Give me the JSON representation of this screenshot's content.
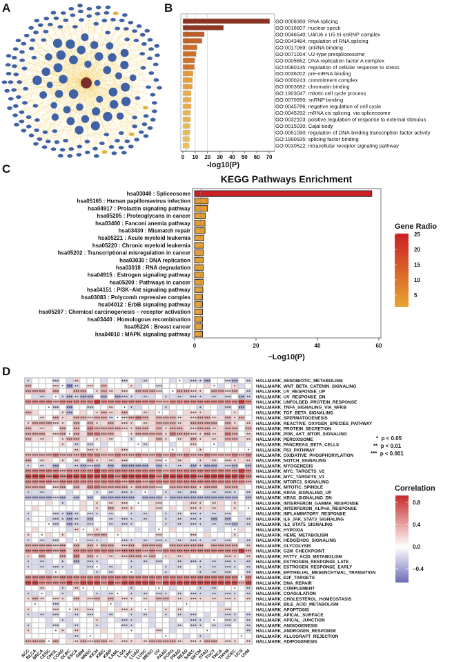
{
  "panels": {
    "a": "A",
    "b": "B",
    "c": "C",
    "d": "D"
  },
  "chart_data": [
    {
      "type": "network",
      "panel": "A",
      "hub_nodes": 1,
      "inner_nodes": 42,
      "outer_nodes": 150,
      "highlight_nodes": 6,
      "colors": {
        "hub": "#7a2e2e",
        "node": "#3f62a6",
        "edge": "#f2c94c",
        "highlight": "#e0b23a"
      }
    },
    {
      "type": "bar",
      "panel": "B",
      "orientation": "horizontal",
      "categories": [
        "GO:0008380: RNA splicing",
        "GO:0016607: nuclear speck",
        "GO:0046540: U4/U6 x U5 tri-snRNP complex",
        "GO:0043484: regulation of RNA splicing",
        "GO:0017069: snRNA binding",
        "GO:0071004: U2-type prespliceosome",
        "GO:0005662: DNA replication factor A complex",
        "GO:0080135: regulation of cellular response to stress",
        "GO:0036002: pre-mRNA binding",
        "GO:0000243: commitment complex",
        "GO:0003682: chromatin binding",
        "GO:1903047: mitotic cell cycle process",
        "GO:0070990: snRNP binding",
        "GO:0045786: negative regulation of cell cycle",
        "GO:0045292: mRNA cis splicing, via spliceosome",
        "GO:0032103: positive regulation of response to external stimulus",
        "GO:0015030: Cajal body",
        "GO:0051090: regulation of DNA-binding transcription factor activity",
        "GO:1990935: splicing factor binding",
        "GO:0030522: intracellular receptor signaling pathway"
      ],
      "values": [
        70.5,
        33,
        17.4,
        15.5,
        11.6,
        10.8,
        9.5,
        9.3,
        8.2,
        7.8,
        7.7,
        6.7,
        6.7,
        6.7,
        6.2,
        6.2,
        5.8,
        5.8,
        5.4,
        5.2
      ],
      "xlabel": "-log10(P)",
      "xticks": [
        "0",
        "10",
        "20",
        "30",
        "40",
        "50",
        "60",
        "70"
      ],
      "xlim": [
        0,
        72
      ],
      "gridlines": [
        2,
        3,
        4,
        10,
        20
      ]
    },
    {
      "type": "bar",
      "panel": "C",
      "orientation": "horizontal",
      "title": "KEGG Pathways Enrichment",
      "categories": [
        "hsa03040 : Spliceosome",
        "hsa05165 : Human papillomavirus infection",
        "hsa04917 : Prolactin signaling pathway",
        "hsa05205 : Proteoglycans in cancer",
        "hsa03460 : Fanconi anemia pathway",
        "hsa03430 : Mismatch repair",
        "hsa05221 : Acute myeloid leukemia",
        "hsa05220 : Chronic myeloid leukemia",
        "hsa05202 : Transcriptional misregulation in cancer",
        "hsa03030 : DNA replication",
        "hsa03018 : RNA degradation",
        "hsa04915 : Estrogen signaling pathway",
        "hsa05200 : Pathways in cancer",
        "hsa04151 : PI3K−Akt signaling pathway",
        "hsa03083 : Polycomb repressive complex",
        "hsa04012 : ErbB signaling pathway",
        "hsa05207 : Chemical carcinogenesis − receptor activation",
        "hsa03440 : Homologous recombination",
        "hsa05224 : Breast cancer",
        "hsa04010 : MAPK signaling pathway"
      ],
      "values": [
        57.7,
        4.4,
        4.2,
        3.5,
        3.4,
        3.4,
        3.0,
        2.85,
        2.85,
        2.8,
        2.8,
        2.8,
        2.8,
        2.7,
        2.6,
        2.6,
        2.6,
        2.6,
        2.6,
        2.6
      ],
      "gene_ratio": [
        25,
        4,
        4,
        3.5,
        3.5,
        3.5,
        3,
        3,
        3,
        3,
        3,
        3,
        3.5,
        3,
        3,
        3,
        3,
        3,
        3,
        3
      ],
      "threshold": 2,
      "xlabel": "−Log10(P)",
      "xticks": [
        "0",
        "20",
        "40",
        "60"
      ],
      "xlim": [
        0,
        60
      ],
      "legend": {
        "title": "Gene Radio",
        "ticks": [
          "25",
          "20",
          "15",
          "10",
          "5"
        ],
        "range": [
          2,
          25
        ],
        "low_color": "#e8a530",
        "high_color": "#cc1f26",
        "placement": "right"
      }
    },
    {
      "type": "heatmap",
      "panel": "D",
      "columns": [
        "ACC",
        "BLCA",
        "BRCA",
        "CESC",
        "CHOL",
        "COAD",
        "DLBC",
        "ESCA",
        "GBM",
        "HNSC",
        "KICH",
        "KIRC",
        "KIRP",
        "LAML",
        "LGG",
        "LIHC",
        "LUAD",
        "LUSC",
        "MESO",
        "OV",
        "PAAD",
        "PCPG",
        "PRAD",
        "READ",
        "SARC",
        "SKCM",
        "STAD",
        "TGCT",
        "THCA",
        "THYM",
        "UCEC",
        "UCS",
        "UVM"
      ],
      "rows": [
        "HALLMARK_XENOBIOTIC_METABOLISM",
        "HALLMARK_WNT_BETA_CATENIN_SIGNALING",
        "HALLMARK_UV_RESPONSE_UP",
        "HALLMARK_UV_RESPONSE_DN",
        "HALLMARK_UNFOLDED_PROTEIN_RESPONSE",
        "HALLMARK_TNFA_SIGNALING_VIA_NFKB",
        "HALLMARK_TGF_BETA_SIGNALING",
        "HALLMARK_SPERMATOGENESIS",
        "HALLMARK_REACTIVE_OXYGEN_SPECIES_PATHWAY",
        "HALLMARK_PROTEIN_SECRETION",
        "HALLMARK_PI3K_AKT_MTOR_SIGNALING",
        "HALLMARK_PEROXISOME",
        "HALLMARK_PANCREAS_BETA_CELLS",
        "HALLMARK_P53_PATHWAY",
        "HALLMARK_OXIDATIVE_PHOSPHORYLATION",
        "HALLMARK_NOTCH_SIGNALING",
        "HALLMARK_MYOGENESIS",
        "HALLMARK_MYC_TARGETS_V2",
        "HALLMARK_MYC_TARGETS_V1",
        "HALLMARK_MTORC1_SIGNALING",
        "HALLMARK_MITOTIC_SPINDLE",
        "HALLMARK_KRAS_SIGNALING_UP",
        "HALLMARK_KRAS_SIGNALING_DN",
        "HALLMARK_INTERFERON_GAMMA_RESPONSE",
        "HALLMARK_INTERFERON_ALPHA_RESPONSE",
        "HALLMARK_INFLAMMATORY_RESPONSE",
        "HALLMARK_IL6_JAK_STAT3_SIGNALING",
        "HALLMARK_IL2_STAT5_SIGNALING",
        "HALLMARK_HYPOXIA",
        "HALLMARK_HEME_METABOLISM",
        "HALLMARK_HEDGEHOG_SIGNALING",
        "HALLMARK_GLYCOLYSIS",
        "HALLMARK_G2M_CHECKPOINT",
        "HALLMARK_FATTY_ACID_METABOLISM",
        "HALLMARK_ESTROGEN_RESPONSE_LATE",
        "HALLMARK_ESTROGEN_RESPONSE_EARLY",
        "HALLMARK_EPITHELIAL_MESENCHYMAL_TRANSITION",
        "HALLMARK_E2F_TARGETS",
        "HALLMARK_DNA_REPAIR",
        "HALLMARK_COMPLEMENT",
        "HALLMARK_COAGULATION",
        "HALLMARK_CHOLESTEROL_HOMEOSTASIS",
        "HALLMARK_BILE_ACID_METABOLISM",
        "HALLMARK_APOPTOSIS",
        "HALLMARK_APICAL_SURFACE",
        "HALLMARK_APICAL_JUNCTION",
        "HALLMARK_ANGIOGENESIS",
        "HALLMARK_ANDROGEN_RESPONSE",
        "HALLMARK_ALLOGRAFT_REJECTION",
        "HALLMARK_ADIPOGENESIS"
      ],
      "value_levels": [
        -0.6,
        -0.45,
        -0.3,
        -0.15,
        0,
        0.15,
        0.3,
        0.45,
        0.7
      ],
      "values_encoded": [
        "344434354443443433444343332443243",
        "644454134546444534434444445434534",
        "666564566456555466654466554665643",
        "433343232242423333343333333333423",
        "777767777787777777766777777777787",
        "444434244344544334443444434433424",
        "654445245456556445544545555434544",
        "445465566566345676566655566556564",
        "566655464655655545566655666646545",
        "655546464766665566565665566556646",
        "666556465776654566665766556557645",
        "655545665455544344565455655556655",
        "444445434343444443444344544434434",
        "444444454555455444444445454444444",
        "666676667776676676676767667666767",
        "645545454655555444554555455545555",
        "343324332323232222323333232233242",
        "777776777787777777776777777777787",
        "888787888888878888878888878888887",
        "777767777777776776777777777777776",
        "666456465776666566654666656656654",
        "333344344434333334343333343333343",
        "222232324242222232223222222222242",
        "444543445454555444554445554554544",
        "454444445454655544554545555554544",
        "344433234334344333343334333333434",
        "344333233244333333343333333232433",
        "444434233344333344343333333333233",
        "454444354454454434344544443434454",
        "544545444566444444454444545444544",
        "343334343333443333333333333333433",
        "666656465656655656664666665666645",
        "777767577777767776767777777777786",
        "546446475655555665645555444445545",
        "333343423333444333334333333333333",
        "333333343343334334443334433333343",
        "444344343434344434443444433333443",
        "777767777777777777777777777777747",
        "887777878887878888878888888888868",
        "445443454444444344444344433344443",
        "334343343433344333433434333333343",
        "565455465565655545566555555555545",
        "444434444444434444444444444434444",
        "544454455545455544545454444455444",
        "333334334343344333343433343433343",
        "444343344453433334344343333443343",
        "344334334433443344344334334333443",
        "544445454445444444454344444444443",
        "444444334444454434444443433444444",
        "666464556566555555666655556655545"
      ],
      "significance_legend": [
        "*  p < 0.05",
        "**  p < 0.01",
        "***  p < 0.001"
      ],
      "colorbar": {
        "title": "Correlation",
        "ticks": [
          "0.8",
          "0.4",
          "0.0",
          "−0.4"
        ],
        "range": [
          -0.65,
          0.92
        ],
        "low_color": "#6c6cb8",
        "mid_color": "#ffffff",
        "high_color": "#c62a2a",
        "placement": "right"
      }
    }
  ]
}
